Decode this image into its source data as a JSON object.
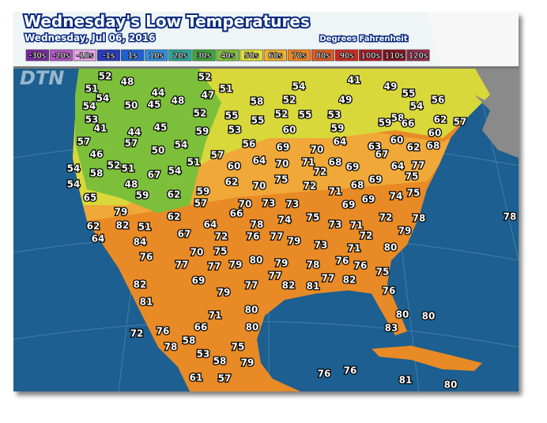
{
  "header": {
    "title": "Wednesday's Low Temperatures",
    "date": "Wednesday, Jul 06, 2016",
    "units": "Degrees Fahrenheit"
  },
  "legend": [
    {
      "label": "-30s",
      "color": "#7a2aa0"
    },
    {
      "label": "-20s",
      "color": "#b455c8"
    },
    {
      "label": "-10s",
      "color": "#e8a6e8"
    },
    {
      "label": "-1s",
      "color": "#2a3ab8"
    },
    {
      "label": "1s",
      "color": "#2060d0"
    },
    {
      "label": "10s",
      "color": "#2e8ee0"
    },
    {
      "label": "20s",
      "color": "#2aa898"
    },
    {
      "label": "30s",
      "color": "#3aa83a"
    },
    {
      "label": "40s",
      "color": "#7cbf3a"
    },
    {
      "label": "50s",
      "color": "#dede38"
    },
    {
      "label": "60s",
      "color": "#f0b030"
    },
    {
      "label": "70s",
      "color": "#ee8420"
    },
    {
      "label": "80s",
      "color": "#e05a20"
    },
    {
      "label": "90s",
      "color": "#cc2a20"
    },
    {
      "label": "100s",
      "color": "#b01828"
    },
    {
      "label": "110s",
      "color": "#8c1020"
    },
    {
      "label": "120s",
      "color": "#9a2c4c"
    }
  ],
  "watermark": "DTN",
  "temperatures": [
    52,
    48,
    52,
    51,
    54,
    41,
    49,
    51,
    54,
    44,
    45,
    48,
    47,
    58,
    52,
    49,
    55,
    54,
    56,
    54,
    50,
    53,
    52,
    55,
    55,
    52,
    55,
    53,
    59,
    58,
    66,
    62,
    57,
    41,
    45,
    44,
    59,
    53,
    60,
    59,
    60,
    57,
    57,
    54,
    50,
    56,
    69,
    70,
    64,
    63,
    60,
    62,
    68,
    67,
    46,
    57,
    64,
    70,
    71,
    68,
    69,
    64,
    77,
    54,
    52,
    51,
    58,
    67,
    54,
    51,
    60,
    72,
    75,
    48,
    54,
    62,
    70,
    75,
    72,
    71,
    68,
    69,
    74,
    75,
    59,
    62,
    59,
    65,
    57,
    70,
    73,
    73,
    69,
    69,
    79,
    66,
    62,
    74,
    75,
    73,
    71,
    72,
    78,
    78,
    62,
    82,
    51,
    64,
    78,
    79,
    64,
    67,
    72,
    76,
    77,
    79,
    72,
    73,
    84,
    70,
    75,
    71,
    80,
    76,
    77,
    77,
    79,
    80,
    79,
    78,
    76,
    76,
    75,
    77,
    69,
    77,
    82,
    81,
    77,
    82,
    82,
    79,
    76,
    81,
    80,
    71,
    80,
    80,
    80,
    66,
    83,
    72,
    76,
    58,
    78,
    75,
    53,
    58,
    79,
    61,
    57,
    76,
    76,
    81,
    80
  ]
}
